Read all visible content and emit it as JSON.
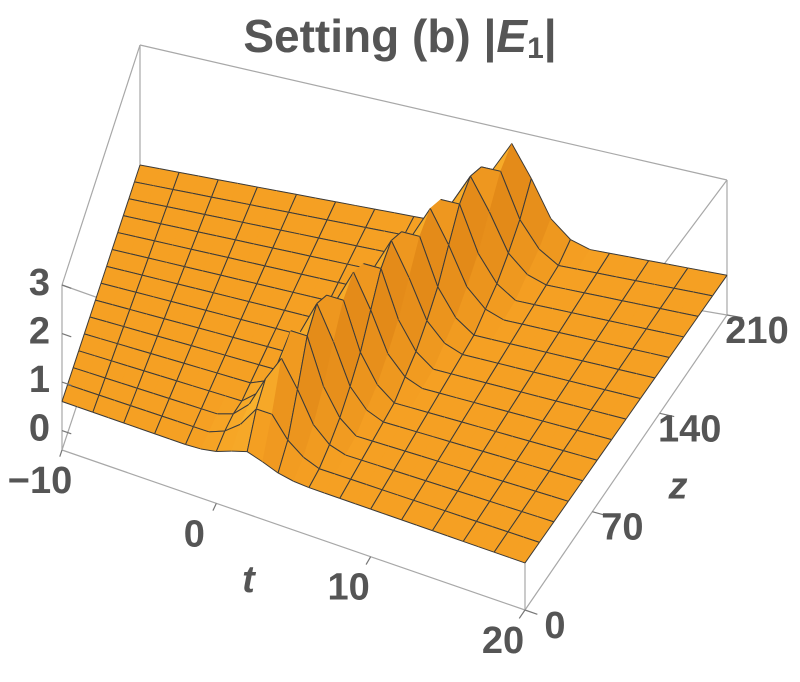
{
  "chart_data": {
    "type": "surface3d",
    "title": {
      "text": "Setting (b) |",
      "symbol": "E",
      "subscript": "1",
      "close": "|"
    },
    "x_label": "t",
    "y_label": "z",
    "t": [
      -10,
      -9,
      -8,
      -7,
      -6,
      -5,
      -4,
      -3,
      -2,
      -1,
      0,
      1,
      2,
      3,
      4,
      5,
      6,
      7,
      8,
      9,
      10,
      11,
      12,
      13,
      14,
      15,
      16,
      17,
      18,
      19,
      20
    ],
    "z": [
      0,
      15,
      30,
      45,
      60,
      75,
      90,
      105,
      120,
      135,
      150,
      165,
      180,
      195,
      210
    ],
    "surface": [
      [
        0.6,
        0.6,
        0.6,
        0.6,
        0.6,
        0.6,
        0.6,
        0.6,
        0.6,
        0.62,
        0.68,
        0.8,
        0.9,
        0.8,
        0.68,
        0.62,
        0.6,
        0.6,
        0.6,
        0.6,
        0.6,
        0.6,
        0.6,
        0.6,
        0.6,
        0.6,
        0.6,
        0.6,
        0.6,
        0.6,
        0.6
      ],
      [
        0.6,
        0.6,
        0.6,
        0.6,
        0.6,
        0.6,
        0.6,
        0.6,
        0.6,
        0.6,
        0.73,
        0.98,
        1.41,
        1.41,
        0.98,
        0.73,
        0.6,
        0.6,
        0.6,
        0.6,
        0.6,
        0.6,
        0.6,
        0.6,
        0.6,
        0.6,
        0.6,
        0.6,
        0.6,
        0.6,
        0.6
      ],
      [
        0.6,
        0.6,
        0.6,
        0.6,
        0.6,
        0.6,
        0.6,
        0.6,
        0.6,
        0.6,
        0.71,
        1.02,
        1.66,
        2.2,
        1.66,
        1.02,
        0.71,
        0.6,
        0.6,
        0.6,
        0.6,
        0.6,
        0.6,
        0.6,
        0.6,
        0.6,
        0.6,
        0.6,
        0.6,
        0.6,
        0.6
      ],
      [
        0.6,
        0.6,
        0.6,
        0.6,
        0.6,
        0.6,
        0.6,
        0.6,
        0.6,
        0.6,
        0.6,
        0.88,
        1.44,
        2.4,
        2.4,
        1.44,
        0.88,
        0.6,
        0.6,
        0.6,
        0.6,
        0.6,
        0.6,
        0.6,
        0.6,
        0.6,
        0.6,
        0.6,
        0.6,
        0.6,
        0.6
      ],
      [
        0.6,
        0.6,
        0.6,
        0.6,
        0.6,
        0.6,
        0.6,
        0.6,
        0.6,
        0.6,
        0.6,
        0.75,
        1.15,
        1.99,
        2.7,
        1.99,
        1.15,
        0.75,
        0.6,
        0.6,
        0.6,
        0.6,
        0.6,
        0.6,
        0.6,
        0.6,
        0.6,
        0.6,
        0.6,
        0.6,
        0.6
      ],
      [
        0.6,
        0.6,
        0.6,
        0.6,
        0.6,
        0.6,
        0.6,
        0.6,
        0.6,
        0.6,
        0.6,
        0.6,
        0.89,
        1.48,
        2.49,
        2.49,
        1.48,
        0.89,
        0.6,
        0.6,
        0.6,
        0.6,
        0.6,
        0.6,
        0.6,
        0.6,
        0.6,
        0.6,
        0.6,
        0.6,
        0.6
      ],
      [
        0.6,
        0.6,
        0.6,
        0.6,
        0.6,
        0.6,
        0.6,
        0.6,
        0.6,
        0.6,
        0.6,
        0.6,
        0.75,
        1.15,
        1.99,
        2.7,
        1.99,
        1.15,
        0.75,
        0.6,
        0.6,
        0.6,
        0.6,
        0.6,
        0.6,
        0.6,
        0.6,
        0.6,
        0.6,
        0.6,
        0.6
      ],
      [
        0.6,
        0.6,
        0.6,
        0.6,
        0.6,
        0.6,
        0.6,
        0.6,
        0.6,
        0.6,
        0.6,
        0.6,
        0.6,
        0.89,
        1.48,
        2.49,
        2.49,
        1.48,
        0.89,
        0.6,
        0.6,
        0.6,
        0.6,
        0.6,
        0.6,
        0.6,
        0.6,
        0.6,
        0.6,
        0.6,
        0.6
      ],
      [
        0.6,
        0.6,
        0.6,
        0.6,
        0.6,
        0.6,
        0.6,
        0.6,
        0.6,
        0.6,
        0.6,
        0.6,
        0.6,
        0.75,
        1.15,
        1.99,
        2.7,
        1.99,
        1.15,
        0.75,
        0.6,
        0.6,
        0.6,
        0.6,
        0.6,
        0.6,
        0.6,
        0.6,
        0.6,
        0.6,
        0.6
      ],
      [
        0.6,
        0.6,
        0.6,
        0.6,
        0.6,
        0.6,
        0.6,
        0.6,
        0.6,
        0.6,
        0.6,
        0.6,
        0.6,
        0.6,
        0.89,
        1.48,
        2.49,
        2.49,
        1.48,
        0.89,
        0.6,
        0.6,
        0.6,
        0.6,
        0.6,
        0.6,
        0.6,
        0.6,
        0.6,
        0.6,
        0.6
      ],
      [
        0.6,
        0.6,
        0.6,
        0.6,
        0.6,
        0.6,
        0.6,
        0.6,
        0.6,
        0.6,
        0.6,
        0.6,
        0.6,
        0.6,
        0.75,
        1.15,
        1.99,
        2.7,
        1.99,
        1.15,
        0.75,
        0.6,
        0.6,
        0.6,
        0.6,
        0.6,
        0.6,
        0.6,
        0.6,
        0.6,
        0.6
      ],
      [
        0.6,
        0.6,
        0.6,
        0.6,
        0.6,
        0.6,
        0.6,
        0.6,
        0.6,
        0.6,
        0.6,
        0.6,
        0.6,
        0.6,
        0.6,
        0.89,
        1.48,
        2.49,
        2.49,
        1.48,
        0.89,
        0.6,
        0.6,
        0.6,
        0.6,
        0.6,
        0.6,
        0.6,
        0.6,
        0.6,
        0.6
      ],
      [
        0.6,
        0.6,
        0.6,
        0.6,
        0.6,
        0.6,
        0.6,
        0.6,
        0.6,
        0.6,
        0.6,
        0.6,
        0.6,
        0.6,
        0.6,
        0.75,
        1.15,
        1.99,
        2.7,
        1.99,
        1.15,
        0.75,
        0.6,
        0.6,
        0.6,
        0.6,
        0.6,
        0.6,
        0.6,
        0.6,
        0.6
      ],
      [
        0.6,
        0.6,
        0.6,
        0.6,
        0.6,
        0.6,
        0.6,
        0.6,
        0.6,
        0.6,
        0.6,
        0.6,
        0.6,
        0.6,
        0.6,
        0.6,
        0.89,
        1.48,
        2.49,
        2.49,
        1.48,
        0.89,
        0.6,
        0.6,
        0.6,
        0.6,
        0.6,
        0.6,
        0.6,
        0.6,
        0.6
      ],
      [
        0.6,
        0.6,
        0.6,
        0.6,
        0.6,
        0.6,
        0.6,
        0.6,
        0.6,
        0.6,
        0.6,
        0.6,
        0.6,
        0.6,
        0.6,
        0.6,
        0.75,
        1.15,
        1.99,
        2.7,
        1.99,
        1.15,
        0.75,
        0.6,
        0.6,
        0.6,
        0.6,
        0.6,
        0.6,
        0.6,
        0.6
      ]
    ],
    "xlim": [
      -10,
      20
    ],
    "ylim": [
      0,
      210
    ],
    "vlim": [
      -0.4,
      3
    ],
    "xticks": [
      {
        "value": -10,
        "label": "−10"
      },
      0,
      10,
      20
    ],
    "yticks": [
      0,
      70,
      140,
      210
    ],
    "vticks": [
      0,
      1,
      2,
      3
    ],
    "color": "#f5a023",
    "mesh": true
  }
}
